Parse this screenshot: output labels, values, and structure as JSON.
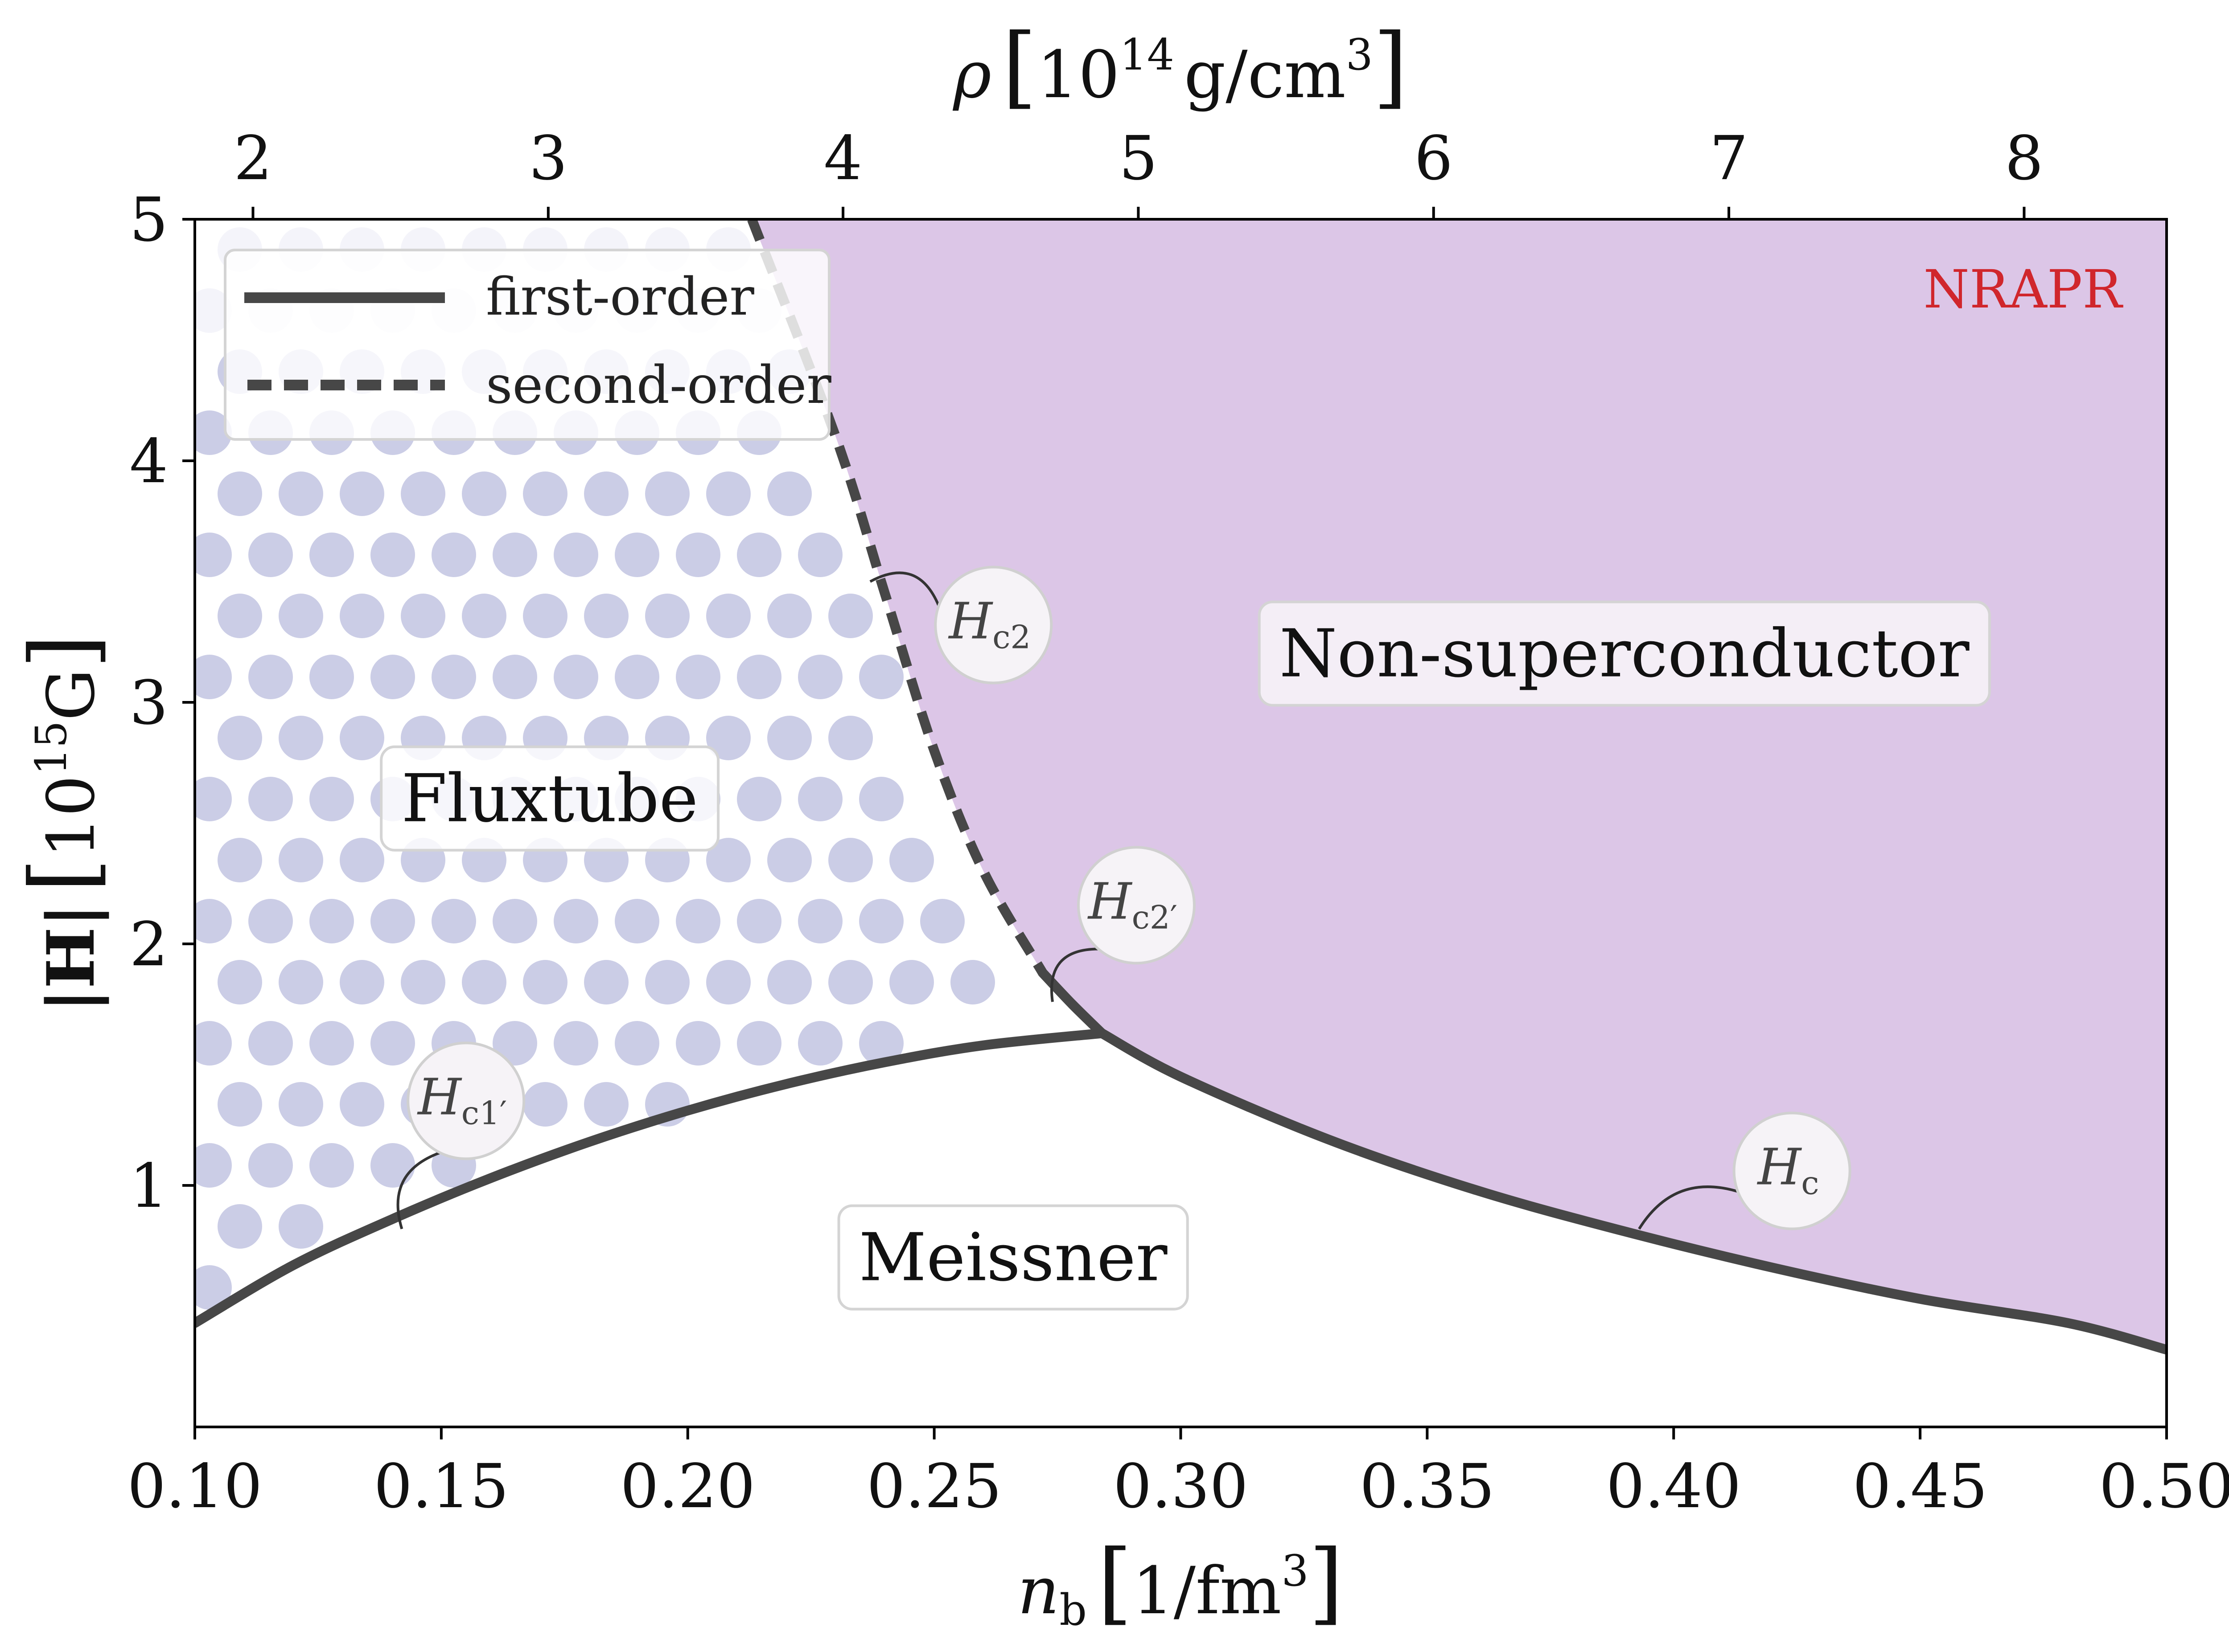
{
  "chart_data": {
    "type": "line",
    "title": "",
    "model_label": "NRAPR",
    "xlabel": "n_b [1/fm^3]",
    "xlabel_parts": {
      "symbol": "n",
      "sub": "b",
      "unit": "1/fm",
      "unit_exp": "3"
    },
    "ylabel": "|H| [10^15 G]",
    "ylabel_parts": {
      "symbol": "|H|",
      "unit_base": "10",
      "unit_exp": "15",
      "unit_tail": "G"
    },
    "top_xlabel": "rho [10^14 g/cm^3]",
    "top_xlabel_parts": {
      "symbol": "ρ",
      "base": "10",
      "exp": "14",
      "unit": "g/cm",
      "unit_exp": "3"
    },
    "xlim": [
      0.1,
      0.5
    ],
    "ylim": [
      0,
      5
    ],
    "xticks": [
      0.1,
      0.15,
      0.2,
      0.25,
      0.3,
      0.35,
      0.4,
      0.45,
      0.5
    ],
    "xtick_labels": [
      "0.10",
      "0.15",
      "0.20",
      "0.25",
      "0.30",
      "0.35",
      "0.40",
      "0.45",
      "0.50"
    ],
    "yticks": [
      1,
      2,
      3,
      4,
      5
    ],
    "ytick_labels": [
      "1",
      "2",
      "3",
      "4",
      "5"
    ],
    "top_xticks_nb": [
      0.1118,
      0.1717,
      0.2315,
      0.2914,
      0.3513,
      0.4112,
      0.4711
    ],
    "top_xtick_labels": [
      "2",
      "3",
      "4",
      "5",
      "6",
      "7",
      "8"
    ],
    "legend": {
      "position": "top-left",
      "entries": [
        {
          "label": "first-order",
          "style": "solid"
        },
        {
          "label": "second-order",
          "style": "dashed"
        }
      ]
    },
    "series": [
      {
        "name": "Hc1'",
        "style": "solid",
        "x": [
          0.1,
          0.12,
          0.14,
          0.16,
          0.18,
          0.2,
          0.22,
          0.24,
          0.26,
          0.284
        ],
        "y": [
          0.43,
          0.67,
          0.86,
          1.03,
          1.18,
          1.31,
          1.42,
          1.51,
          1.58,
          1.63
        ]
      },
      {
        "name": "Hc",
        "style": "solid",
        "x": [
          0.284,
          0.3,
          0.33,
          0.36,
          0.39,
          0.42,
          0.45,
          0.48,
          0.5
        ],
        "y": [
          1.63,
          1.45,
          1.19,
          0.98,
          0.81,
          0.66,
          0.53,
          0.43,
          0.32
        ]
      },
      {
        "name": "Hc2'",
        "style": "solid",
        "x": [
          0.272,
          0.278,
          0.284
        ],
        "y": [
          1.88,
          1.75,
          1.63
        ]
      },
      {
        "name": "Hc2",
        "style": "dashed",
        "x": [
          0.213,
          0.23,
          0.24,
          0.25,
          0.26,
          0.272
        ],
        "y": [
          5.0,
          4.1,
          3.45,
          2.8,
          2.3,
          1.88
        ]
      }
    ],
    "regions": [
      {
        "name": "Fluxtube",
        "label": "Fluxtube",
        "label_at": [
          0.172,
          2.6
        ]
      },
      {
        "name": "Non-superconductor",
        "label": "Non-superconductor",
        "label_at": [
          0.39,
          3.2
        ]
      },
      {
        "name": "Meissner",
        "label": "Meissner",
        "label_at": [
          0.266,
          0.7
        ]
      }
    ],
    "annotations": [
      {
        "label_main": "H",
        "label_sub": "c2",
        "text_at": [
          0.262,
          3.32
        ],
        "points_to": [
          0.237,
          3.5
        ]
      },
      {
        "label_main": "H",
        "label_sub": "c2′",
        "text_at": [
          0.291,
          2.16
        ],
        "points_to": [
          0.274,
          1.76
        ]
      },
      {
        "label_main": "H",
        "label_sub": "c1′",
        "text_at": [
          0.155,
          1.35
        ],
        "points_to": [
          0.142,
          0.82
        ]
      },
      {
        "label_main": "H",
        "label_sub": "c",
        "text_at": [
          0.424,
          1.06
        ],
        "points_to": [
          0.393,
          0.82
        ]
      }
    ]
  },
  "colors": {
    "line": "#474747",
    "non_superconductor_fill": "#dcc6e7",
    "fluxtube_dot": "#cbcde6",
    "model_label": "#d0262c",
    "frame": "#000000"
  }
}
